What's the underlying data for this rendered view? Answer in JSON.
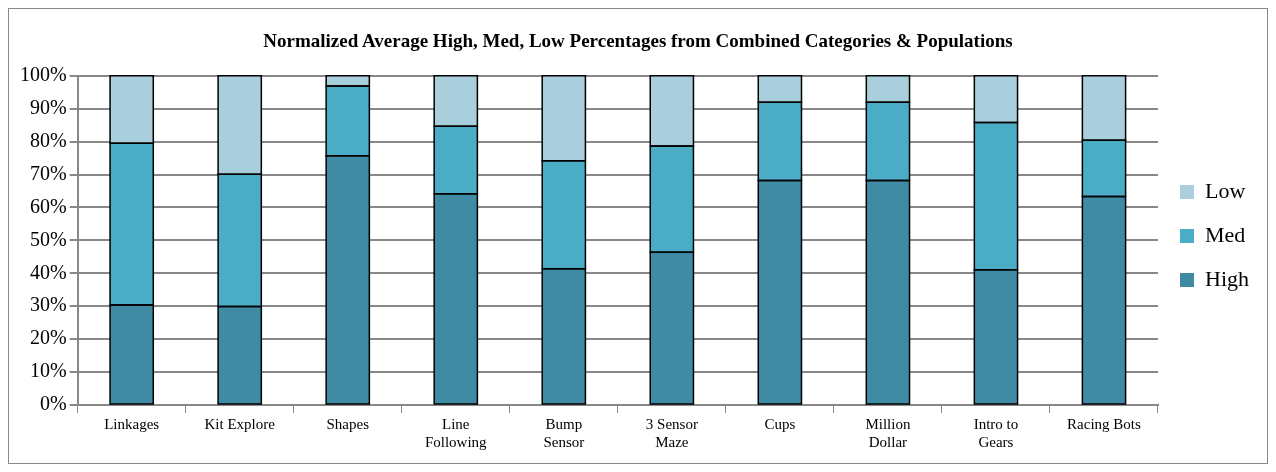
{
  "chart_data": {
    "type": "bar",
    "title": "Normalized Average High, Med, Low Percentages from Combined Categories & Populations",
    "categories": [
      "Linkages",
      "Kit Explore",
      "Shapes",
      "Line\nFollowing",
      "Bump\nSensor",
      "3 Sensor\nMaze",
      "Cups",
      "Million\nDollar",
      "Intro to\nGears",
      "Racing Bots"
    ],
    "stacked": true,
    "series": [
      {
        "name": "High",
        "color": "#3e8ba3",
        "values": [
          30.4,
          29.9,
          75.7,
          64.2,
          41.4,
          46.4,
          68.2,
          68.2,
          41.1,
          63.3
        ]
      },
      {
        "name": "Med",
        "color": "#4bacc6",
        "values": [
          49.1,
          40.2,
          21.2,
          20.5,
          32.8,
          32.3,
          23.8,
          23.8,
          44.7,
          17.1
        ]
      },
      {
        "name": "Low",
        "color": "#a9cfdc",
        "values": [
          20.5,
          29.9,
          3.1,
          15.3,
          25.8,
          21.3,
          8.0,
          8.0,
          14.2,
          19.6
        ]
      }
    ],
    "ylim": [
      0,
      100
    ],
    "yticks": [
      {
        "value": 0,
        "label": "0%"
      },
      {
        "value": 10,
        "label": "10%"
      },
      {
        "value": 20,
        "label": "20%"
      },
      {
        "value": 30,
        "label": "30%"
      },
      {
        "value": 40,
        "label": "40%"
      },
      {
        "value": 50,
        "label": "50%"
      },
      {
        "value": 60,
        "label": "60%"
      },
      {
        "value": 70,
        "label": "70%"
      },
      {
        "value": 80,
        "label": "80%"
      },
      {
        "value": 90,
        "label": "90%"
      },
      {
        "value": 100,
        "label": "100%"
      }
    ],
    "grid": "y",
    "legend": "right"
  }
}
